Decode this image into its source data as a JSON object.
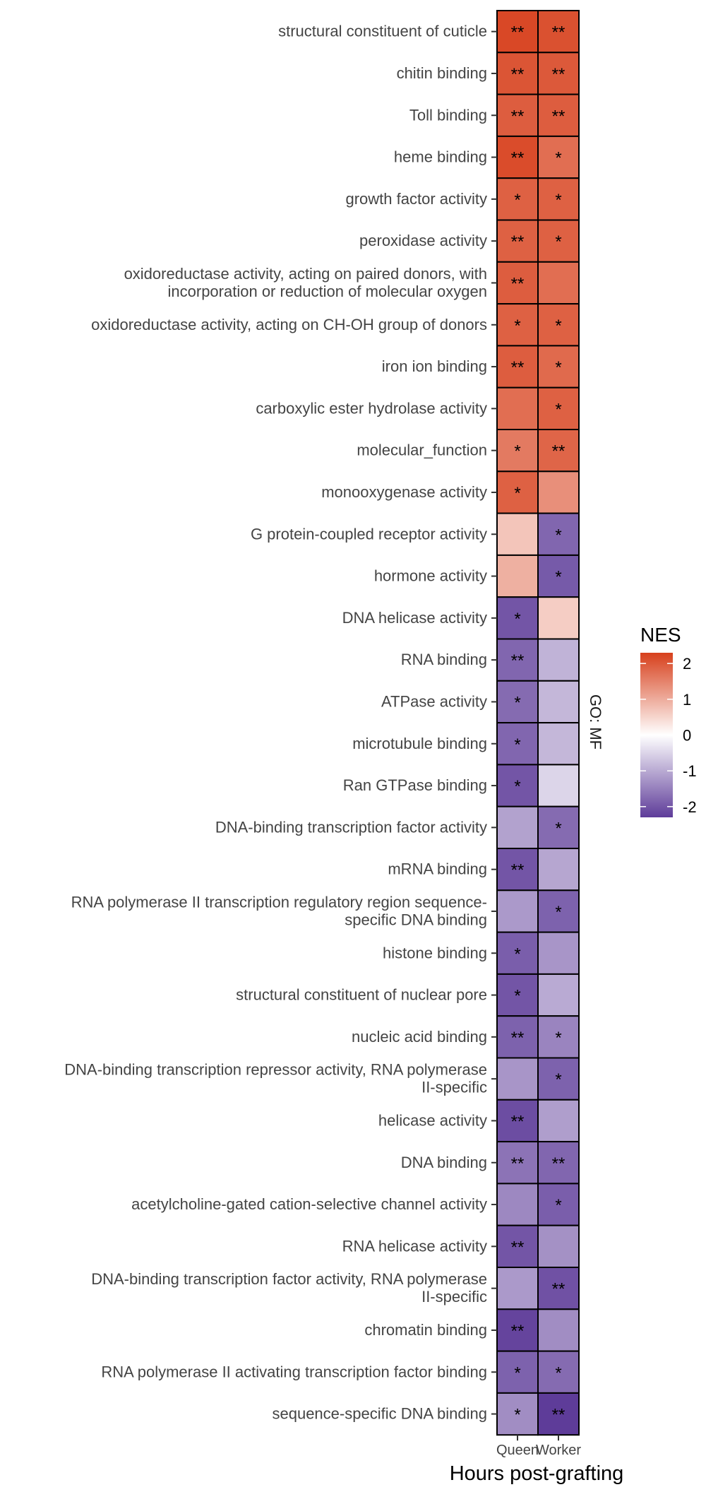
{
  "chart_data": {
    "type": "heatmap",
    "xlabel": "Hours post-grafting",
    "columns": [
      "Queen",
      "Worker"
    ],
    "facet_label": "GO: MF",
    "legend": {
      "title": "NES",
      "ticks": [
        2,
        1,
        0,
        -1,
        -2
      ],
      "range": [
        -2.3,
        2.3
      ],
      "low_color": "#5e3c99",
      "mid_color": "#ffffff",
      "high_color": "#d7401c"
    },
    "rows": [
      {
        "label": [
          "structural constituent of cuticle"
        ],
        "values": [
          2.2,
          2.1
        ],
        "sig": [
          "**",
          "**"
        ]
      },
      {
        "label": [
          "chitin binding"
        ],
        "values": [
          2.05,
          2.0
        ],
        "sig": [
          "**",
          "**"
        ]
      },
      {
        "label": [
          "Toll binding"
        ],
        "values": [
          1.95,
          1.95
        ],
        "sig": [
          "**",
          "**"
        ]
      },
      {
        "label": [
          "heme binding"
        ],
        "values": [
          2.15,
          1.75
        ],
        "sig": [
          "**",
          "*"
        ]
      },
      {
        "label": [
          "growth factor activity"
        ],
        "values": [
          1.9,
          1.9
        ],
        "sig": [
          "*",
          "*"
        ]
      },
      {
        "label": [
          "peroxidase activity"
        ],
        "values": [
          1.9,
          1.9
        ],
        "sig": [
          "**",
          "*"
        ]
      },
      {
        "label": [
          "oxidoreductase activity, acting on paired donors, with",
          "incorporation or reduction of molecular oxygen"
        ],
        "values": [
          1.95,
          1.75
        ],
        "sig": [
          "**",
          ""
        ]
      },
      {
        "label": [
          "oxidoreductase activity, acting on CH-OH group of donors"
        ],
        "values": [
          1.9,
          1.9
        ],
        "sig": [
          "*",
          "*"
        ]
      },
      {
        "label": [
          "iron ion binding"
        ],
        "values": [
          1.95,
          1.8
        ],
        "sig": [
          "**",
          "*"
        ]
      },
      {
        "label": [
          "carboxylic ester hydrolase activity"
        ],
        "values": [
          1.75,
          1.9
        ],
        "sig": [
          "",
          "*"
        ]
      },
      {
        "label": [
          "molecular_function"
        ],
        "values": [
          1.6,
          1.85
        ],
        "sig": [
          "*",
          "**"
        ]
      },
      {
        "label": [
          "monooxygenase activity"
        ],
        "values": [
          1.9,
          1.35
        ],
        "sig": [
          "*",
          ""
        ]
      },
      {
        "label": [
          "G protein-coupled receptor activity"
        ],
        "values": [
          0.7,
          -1.8
        ],
        "sig": [
          "",
          "*"
        ]
      },
      {
        "label": [
          "hormone activity"
        ],
        "values": [
          0.95,
          -1.95
        ],
        "sig": [
          "",
          "*"
        ]
      },
      {
        "label": [
          "DNA helicase activity"
        ],
        "values": [
          -2.0,
          0.6
        ],
        "sig": [
          "*",
          ""
        ]
      },
      {
        "label": [
          "RNA binding"
        ],
        "values": [
          -1.8,
          -0.9
        ],
        "sig": [
          "**",
          ""
        ]
      },
      {
        "label": [
          "ATPase activity"
        ],
        "values": [
          -1.75,
          -0.85
        ],
        "sig": [
          "*",
          ""
        ]
      },
      {
        "label": [
          "microtubule binding"
        ],
        "values": [
          -1.8,
          -0.85
        ],
        "sig": [
          "*",
          ""
        ]
      },
      {
        "label": [
          "Ran GTPase binding"
        ],
        "values": [
          -2.0,
          -0.5
        ],
        "sig": [
          "*",
          ""
        ]
      },
      {
        "label": [
          "DNA-binding transcription factor activity"
        ],
        "values": [
          -1.1,
          -1.75
        ],
        "sig": [
          "",
          "*"
        ]
      },
      {
        "label": [
          "mRNA binding"
        ],
        "values": [
          -2.0,
          -1.05
        ],
        "sig": [
          "**",
          ""
        ]
      },
      {
        "label": [
          "RNA polymerase II transcription regulatory region sequence-",
          "specific DNA binding"
        ],
        "values": [
          -1.2,
          -1.85
        ],
        "sig": [
          "",
          "*"
        ]
      },
      {
        "label": [
          "histone binding"
        ],
        "values": [
          -1.9,
          -1.25
        ],
        "sig": [
          "*",
          ""
        ]
      },
      {
        "label": [
          "structural constituent of nuclear pore"
        ],
        "values": [
          -2.0,
          -1.0
        ],
        "sig": [
          "*",
          ""
        ]
      },
      {
        "label": [
          "nucleic acid binding"
        ],
        "values": [
          -1.85,
          -1.45
        ],
        "sig": [
          "**",
          "*"
        ]
      },
      {
        "label": [
          "DNA-binding transcription repressor activity, RNA polymerase",
          "II-specific"
        ],
        "values": [
          -1.25,
          -1.85
        ],
        "sig": [
          "",
          "*"
        ]
      },
      {
        "label": [
          "helicase activity"
        ],
        "values": [
          -2.1,
          -1.15
        ],
        "sig": [
          "**",
          ""
        ]
      },
      {
        "label": [
          "DNA binding"
        ],
        "values": [
          -1.65,
          -1.8
        ],
        "sig": [
          "**",
          "**"
        ]
      },
      {
        "label": [
          "acetylcholine-gated cation-selective channel activity"
        ],
        "values": [
          -1.4,
          -1.9
        ],
        "sig": [
          "",
          "*"
        ]
      },
      {
        "label": [
          "RNA helicase activity"
        ],
        "values": [
          -2.0,
          -1.3
        ],
        "sig": [
          "**",
          ""
        ]
      },
      {
        "label": [
          "DNA-binding transcription factor activity, RNA polymerase",
          "II-specific"
        ],
        "values": [
          -1.2,
          -2.05
        ],
        "sig": [
          "",
          "**"
        ]
      },
      {
        "label": [
          "chromatin binding"
        ],
        "values": [
          -2.2,
          -1.35
        ],
        "sig": [
          "**",
          ""
        ]
      },
      {
        "label": [
          "RNA polymerase II activating transcription factor binding"
        ],
        "values": [
          -1.85,
          -1.75
        ],
        "sig": [
          "*",
          "*"
        ]
      },
      {
        "label": [
          "sequence-specific DNA binding"
        ],
        "values": [
          -1.35,
          -2.3
        ],
        "sig": [
          "*",
          "**"
        ]
      }
    ]
  }
}
